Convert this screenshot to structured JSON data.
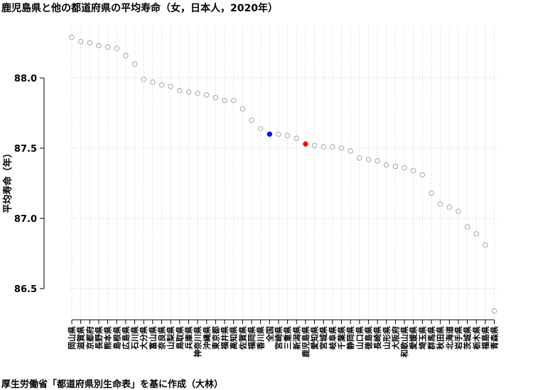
{
  "chart_data": {
    "type": "scatter",
    "title": "鹿児島県と他の都道府県の平均寿命（女，日本人，2020年）",
    "ylabel": "平均寿命（年）",
    "xlabel": "",
    "ylim": [
      86.24,
      88.35
    ],
    "yticks": [
      86.5,
      87.0,
      87.5,
      88.0
    ],
    "grid": true,
    "categories": [
      "岡山県",
      "滋賀県",
      "京都府",
      "長野県",
      "熊本県",
      "島根県",
      "広島県",
      "石川県",
      "大分県",
      "富山県",
      "奈良県",
      "山梨県",
      "鳥取県",
      "兵庫県",
      "神奈川県",
      "沖縄県",
      "東京都",
      "福井県",
      "高知県",
      "佐賀県",
      "福岡県",
      "香川県",
      "全国",
      "宮崎県",
      "三重県",
      "新潟県",
      "鹿児島県",
      "愛知県",
      "宮城県",
      "岐阜県",
      "千葉県",
      "静岡県",
      "山口県",
      "徳島県",
      "長崎県",
      "山形県",
      "大阪府",
      "和歌山県",
      "愛媛県",
      "埼玉県",
      "群馬県",
      "秋田県",
      "北海道",
      "岩手県",
      "茨城県",
      "栃木県",
      "福島県",
      "青森県"
    ],
    "values": [
      88.29,
      88.26,
      88.25,
      88.23,
      88.22,
      88.21,
      88.16,
      88.1,
      87.99,
      87.97,
      87.95,
      87.94,
      87.91,
      87.9,
      87.89,
      87.88,
      87.86,
      87.84,
      87.84,
      87.78,
      87.7,
      87.64,
      87.6,
      87.6,
      87.59,
      87.57,
      87.53,
      87.52,
      87.51,
      87.51,
      87.5,
      87.48,
      87.43,
      87.42,
      87.41,
      87.38,
      87.37,
      87.36,
      87.34,
      87.31,
      87.18,
      87.1,
      87.08,
      87.05,
      86.94,
      86.89,
      86.81,
      86.34
    ],
    "colors": {
      "point_default": "#9a9a9a",
      "highlight_national": "#0000ff",
      "highlight_kagoshima": "#ff0000",
      "grid": "#c8c8c8"
    },
    "highlight": {
      "全国": "blue",
      "鹿児島県": "red"
    }
  },
  "source_note": "厚生労働省「都道府県別生命表」を基に作成（大林）"
}
